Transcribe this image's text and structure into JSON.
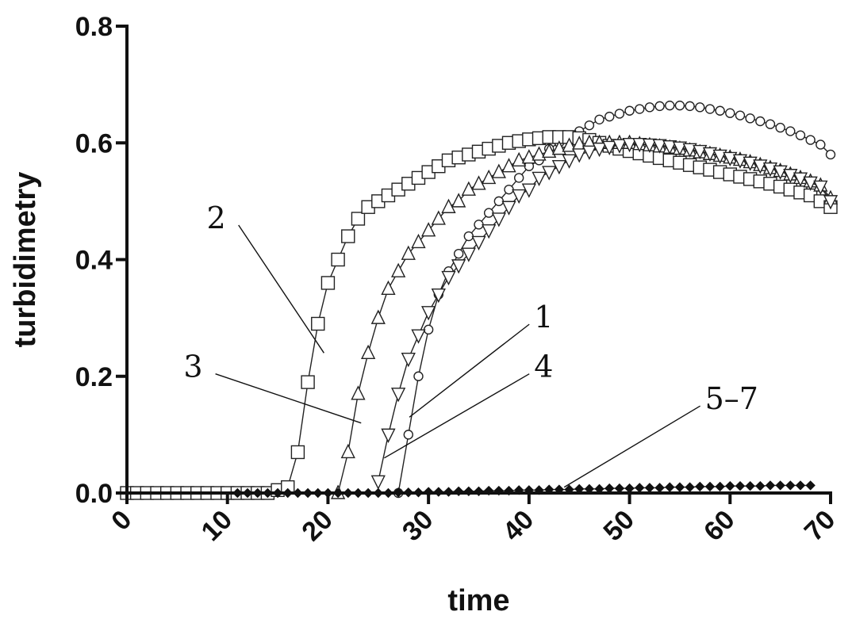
{
  "chart_data": {
    "type": "line",
    "xlabel": "time",
    "ylabel": "turbidimetry",
    "xlim": [
      0,
      70
    ],
    "ylim": [
      0,
      0.8
    ],
    "x_ticks": [
      "0",
      "10",
      "20",
      "30",
      "40",
      "50",
      "60",
      "70"
    ],
    "y_ticks": [
      "0.0",
      "0.2",
      "0.4",
      "0.6",
      "0.8"
    ],
    "grid": false,
    "series": [
      {
        "name": "1",
        "marker": "circle",
        "x": [
          27,
          28,
          29,
          30,
          31,
          32,
          33,
          34,
          35,
          36,
          37,
          38,
          39,
          40,
          41,
          42,
          43,
          44,
          45,
          46,
          47,
          48,
          49,
          50,
          51,
          52,
          53,
          54,
          55,
          56,
          57,
          58,
          59,
          60,
          61,
          62,
          63,
          64,
          65,
          66,
          67,
          68,
          69,
          70
        ],
        "y": [
          0.0,
          0.1,
          0.2,
          0.28,
          0.34,
          0.38,
          0.41,
          0.44,
          0.46,
          0.48,
          0.5,
          0.52,
          0.54,
          0.56,
          0.57,
          0.59,
          0.6,
          0.61,
          0.62,
          0.63,
          0.64,
          0.645,
          0.65,
          0.655,
          0.658,
          0.661,
          0.663,
          0.664,
          0.664,
          0.663,
          0.661,
          0.658,
          0.655,
          0.651,
          0.647,
          0.642,
          0.637,
          0.632,
          0.626,
          0.62,
          0.613,
          0.605,
          0.597,
          0.58
        ]
      },
      {
        "name": "2",
        "marker": "square",
        "x": [
          0,
          1,
          2,
          3,
          4,
          5,
          6,
          7,
          8,
          9,
          10,
          11,
          12,
          13,
          14,
          15,
          16,
          17,
          18,
          19,
          20,
          21,
          22,
          23,
          24,
          25,
          26,
          27,
          28,
          29,
          30,
          31,
          32,
          33,
          34,
          35,
          36,
          37,
          38,
          39,
          40,
          41,
          42,
          43,
          44,
          45,
          46,
          47,
          48,
          49,
          50,
          51,
          52,
          53,
          54,
          55,
          56,
          57,
          58,
          59,
          60,
          61,
          62,
          63,
          64,
          65,
          66,
          67,
          68,
          69,
          70
        ],
        "y": [
          0,
          0,
          0,
          0,
          0,
          0,
          0,
          0,
          0,
          0,
          0,
          0,
          0,
          0,
          0,
          0.005,
          0.01,
          0.07,
          0.19,
          0.29,
          0.36,
          0.4,
          0.44,
          0.47,
          0.49,
          0.5,
          0.51,
          0.52,
          0.53,
          0.54,
          0.55,
          0.56,
          0.57,
          0.575,
          0.58,
          0.585,
          0.59,
          0.595,
          0.6,
          0.603,
          0.606,
          0.608,
          0.61,
          0.61,
          0.61,
          0.608,
          0.605,
          0.6,
          0.595,
          0.59,
          0.586,
          0.582,
          0.578,
          0.574,
          0.57,
          0.566,
          0.562,
          0.558,
          0.554,
          0.55,
          0.546,
          0.542,
          0.538,
          0.534,
          0.53,
          0.525,
          0.52,
          0.515,
          0.51,
          0.5,
          0.49
        ]
      },
      {
        "name": "3",
        "marker": "triangle-up",
        "x": [
          21,
          22,
          23,
          24,
          25,
          26,
          27,
          28,
          29,
          30,
          31,
          32,
          33,
          34,
          35,
          36,
          37,
          38,
          39,
          40,
          41,
          42,
          43,
          44,
          45,
          46,
          47,
          48,
          49,
          50,
          51,
          52,
          53,
          54,
          55,
          56,
          57,
          58,
          59,
          60,
          61,
          62,
          63,
          64,
          65,
          66,
          67,
          68,
          69,
          70
        ],
        "y": [
          0.0,
          0.07,
          0.17,
          0.24,
          0.3,
          0.35,
          0.38,
          0.41,
          0.43,
          0.45,
          0.47,
          0.49,
          0.5,
          0.52,
          0.53,
          0.54,
          0.55,
          0.56,
          0.57,
          0.575,
          0.58,
          0.585,
          0.59,
          0.595,
          0.598,
          0.6,
          0.6,
          0.6,
          0.6,
          0.6,
          0.598,
          0.596,
          0.594,
          0.592,
          0.59,
          0.587,
          0.584,
          0.581,
          0.578,
          0.575,
          0.571,
          0.567,
          0.562,
          0.557,
          0.552,
          0.546,
          0.54,
          0.534,
          0.527,
          0.505
        ]
      },
      {
        "name": "4",
        "marker": "triangle-down",
        "x": [
          25,
          26,
          27,
          28,
          29,
          30,
          31,
          32,
          33,
          34,
          35,
          36,
          37,
          38,
          39,
          40,
          41,
          42,
          43,
          44,
          45,
          46,
          47,
          48,
          49,
          50,
          51,
          52,
          53,
          54,
          55,
          56,
          57,
          58,
          59,
          60,
          61,
          62,
          63,
          64,
          65,
          66,
          67,
          68,
          69,
          70
        ],
        "y": [
          0.02,
          0.1,
          0.17,
          0.23,
          0.27,
          0.31,
          0.34,
          0.37,
          0.39,
          0.41,
          0.43,
          0.45,
          0.47,
          0.49,
          0.51,
          0.52,
          0.54,
          0.55,
          0.56,
          0.57,
          0.58,
          0.585,
          0.59,
          0.593,
          0.596,
          0.598,
          0.598,
          0.597,
          0.596,
          0.594,
          0.592,
          0.589,
          0.586,
          0.582,
          0.578,
          0.574,
          0.57,
          0.566,
          0.561,
          0.556,
          0.551,
          0.545,
          0.539,
          0.532,
          0.525,
          0.5
        ]
      },
      {
        "name": "5–7",
        "marker": "filled-diamond",
        "x": [
          11,
          12,
          13,
          14,
          15,
          16,
          17,
          18,
          19,
          20,
          21,
          22,
          23,
          24,
          25,
          26,
          27,
          28,
          29,
          30,
          31,
          32,
          33,
          34,
          35,
          36,
          37,
          38,
          39,
          40,
          41,
          42,
          43,
          44,
          45,
          46,
          47,
          48,
          49,
          50,
          51,
          52,
          53,
          54,
          55,
          56,
          57,
          58,
          59,
          60,
          61,
          62,
          63,
          64,
          65,
          66,
          67,
          68
        ],
        "y": [
          0.0,
          0.0,
          0.0,
          0.0,
          0.0,
          0.0,
          0.0,
          0.0,
          0.0,
          0.0,
          0.0,
          0.0,
          0.0,
          0.0,
          0.0,
          0.0,
          0.001,
          0.001,
          0.001,
          0.002,
          0.002,
          0.002,
          0.003,
          0.003,
          0.003,
          0.004,
          0.004,
          0.004,
          0.005,
          0.005,
          0.005,
          0.006,
          0.006,
          0.006,
          0.007,
          0.007,
          0.007,
          0.008,
          0.008,
          0.008,
          0.009,
          0.009,
          0.009,
          0.01,
          0.01,
          0.01,
          0.011,
          0.011,
          0.011,
          0.012,
          0.012,
          0.012,
          0.012,
          0.013,
          0.013,
          0.013,
          0.013,
          0.013
        ]
      }
    ],
    "annotations": [
      {
        "text": "2",
        "series": "2",
        "point": [
          19.6,
          0.24
        ],
        "label_at": [
          10,
          0.47
        ]
      },
      {
        "text": "3",
        "series": "3",
        "point": [
          23.3,
          0.12
        ],
        "label_at": [
          7.7,
          0.215
        ]
      },
      {
        "text": "1",
        "series": "1",
        "point": [
          28.1,
          0.13
        ],
        "label_at": [
          40.5,
          0.3
        ]
      },
      {
        "text": "4",
        "series": "4",
        "point": [
          25.6,
          0.06
        ],
        "label_at": [
          40.5,
          0.215
        ]
      },
      {
        "text": "5–7",
        "series": "5–7",
        "point": [
          43.5,
          0.01
        ],
        "label_at": [
          57.5,
          0.16
        ]
      }
    ]
  }
}
